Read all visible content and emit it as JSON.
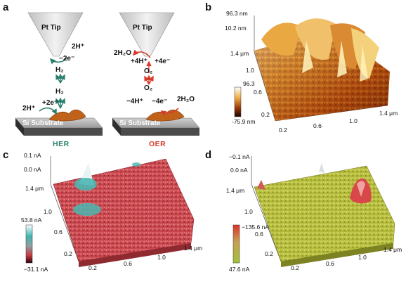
{
  "panels": {
    "a": {
      "label": "a",
      "tip_left": "Pt Tip",
      "tip_right": "Pt Tip",
      "substrate_left": "Si Substrate",
      "substrate_right": "Si Substrate",
      "her": {
        "reaction_2h_top": "2H⁺",
        "electrons_top": "−2e⁻",
        "h2_upper": "H₂",
        "h2_lower": "H₂",
        "reaction_2h_bottom": "2H⁺",
        "electrons_bottom": "+2e⁻",
        "name": "HER"
      },
      "oer": {
        "h2o_top": "2H₂O",
        "h_top": "+4H⁺",
        "e_top": "+4e⁻",
        "o2_upper": "O₂",
        "o2_lower": "O₂",
        "h_bottom": "−4H⁺",
        "e_bottom": "−4e⁻",
        "h2o_bottom": "2H₂O",
        "name": "OER"
      }
    },
    "b": {
      "label": "b",
      "z_top": "96.3 nm",
      "z_mid": "10.2 nm",
      "y_axis": [
        "1.4 μm",
        "1.0",
        "0.6",
        "0.2"
      ],
      "x_axis": [
        "0.2",
        "0.6",
        "1.0",
        "1.4 μm"
      ],
      "cbar_max": "96.3",
      "cbar_min": "-75.9 nm"
    },
    "c": {
      "label": "c",
      "z_top": "0.1 nA",
      "z_mid": "0.0 nA",
      "y_axis": [
        "1.4 μm",
        "1.0",
        "0.6",
        "0.2"
      ],
      "x_axis": [
        "0.2",
        "0.6",
        "1.0",
        "1.4 μm"
      ],
      "cbar_max": "53.8 nA",
      "cbar_min": "−31.1 nA"
    },
    "d": {
      "label": "d",
      "z_top": "−0.1 nA",
      "z_mid": "0.0 nA",
      "y_axis": [
        "1.4 μm",
        "1.0",
        "0.6",
        "0.2"
      ],
      "x_axis": [
        "0.2",
        "0.6",
        "1.0",
        "1.4 μm"
      ],
      "cbar_max": "−135.6 nA",
      "cbar_min": "47.6 nA"
    }
  },
  "colors": {
    "her_arrow": "#2a7f6f",
    "oer_arrow": "#d63a2a",
    "topography": "#b8520e",
    "current_c": "#c9474e",
    "current_d": "#b7bd3a"
  }
}
